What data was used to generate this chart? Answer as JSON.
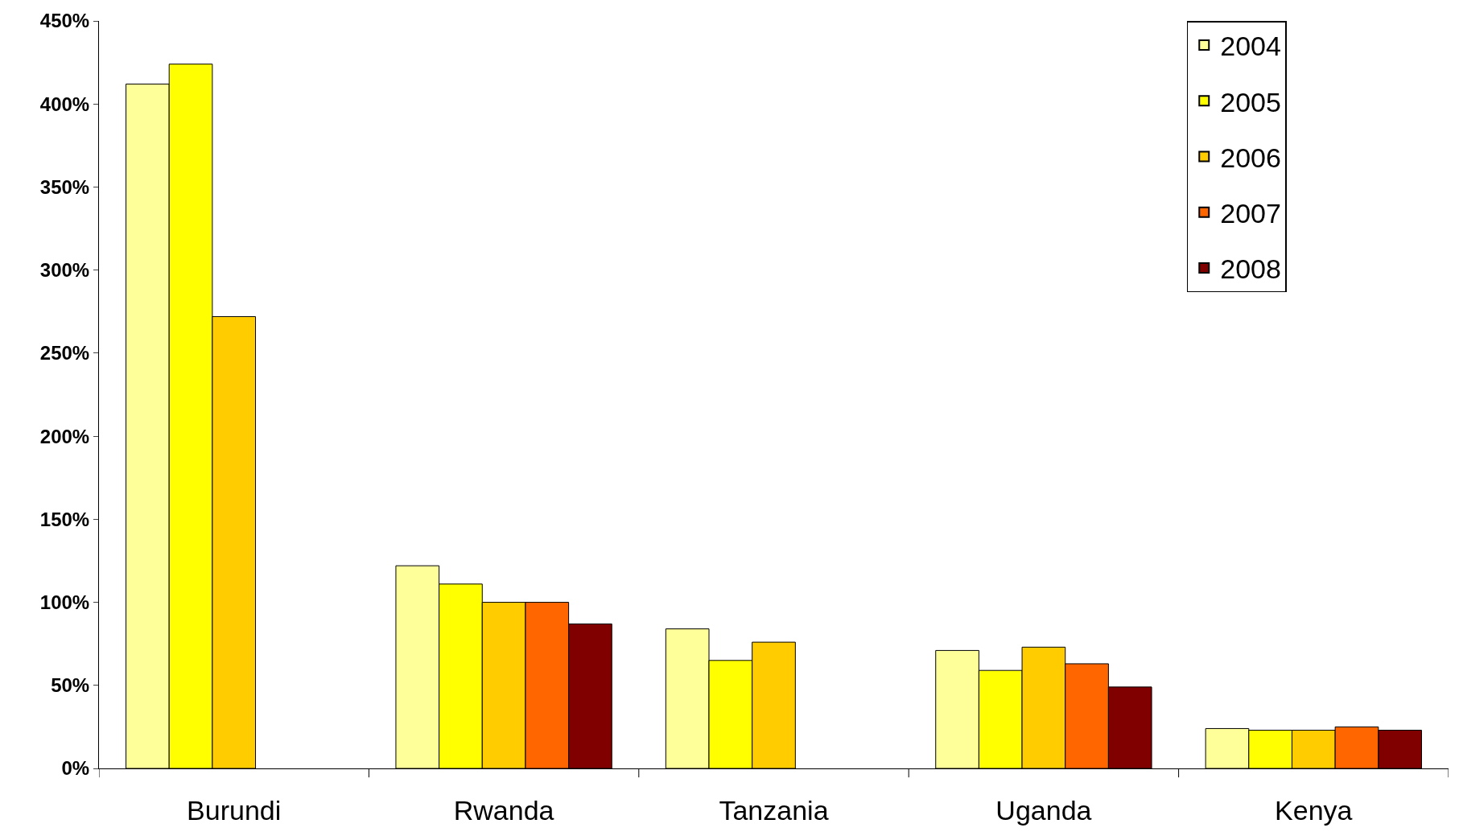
{
  "chart_data": {
    "type": "bar",
    "categories": [
      "Burundi",
      "Rwanda",
      "Tanzania",
      "Uganda",
      "Kenya"
    ],
    "series": [
      {
        "name": "2004",
        "color": "#ffff99",
        "values": [
          412,
          122,
          84,
          71,
          24
        ]
      },
      {
        "name": "2005",
        "color": "#ffff00",
        "values": [
          424,
          111,
          65,
          59,
          23
        ]
      },
      {
        "name": "2006",
        "color": "#ffcc00",
        "values": [
          272,
          100,
          76,
          73,
          23
        ]
      },
      {
        "name": "2007",
        "color": "#ff6600",
        "values": [
          null,
          100,
          null,
          63,
          25
        ]
      },
      {
        "name": "2008",
        "color": "#800000",
        "values": [
          null,
          87,
          null,
          49,
          23
        ]
      }
    ],
    "ylim": [
      0,
      450
    ],
    "yticks": [
      {
        "value": 0,
        "label": "0%"
      },
      {
        "value": 50,
        "label": "50%"
      },
      {
        "value": 100,
        "label": "100%"
      },
      {
        "value": 150,
        "label": "150%"
      },
      {
        "value": 200,
        "label": "200%"
      },
      {
        "value": 250,
        "label": "250%"
      },
      {
        "value": 300,
        "label": "300%"
      },
      {
        "value": 350,
        "label": "350%"
      },
      {
        "value": 400,
        "label": "400%"
      },
      {
        "value": 450,
        "label": "450%"
      }
    ],
    "legend": "top right"
  }
}
